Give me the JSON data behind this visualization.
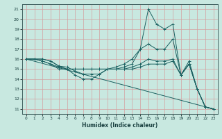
{
  "xlabel": "Humidex (Indice chaleur)",
  "bg_color": "#c8e8e0",
  "grid_color": "#d4a0a0",
  "line_color": "#1a6060",
  "xlim": [
    -0.5,
    23.5
  ],
  "ylim": [
    10.5,
    21.5
  ],
  "yticks": [
    11,
    12,
    13,
    14,
    15,
    16,
    17,
    18,
    19,
    20,
    21
  ],
  "xticks": [
    0,
    1,
    2,
    3,
    4,
    5,
    6,
    7,
    8,
    9,
    10,
    11,
    12,
    13,
    14,
    15,
    16,
    17,
    18,
    19,
    20,
    21,
    22,
    23
  ],
  "lines": [
    {
      "x": [
        0,
        1,
        2,
        3,
        4,
        5,
        6,
        7,
        8,
        9,
        10,
        11,
        12,
        13,
        14,
        15,
        16,
        17,
        18,
        19,
        20,
        21,
        22,
        23
      ],
      "y": [
        16,
        16,
        16,
        15.8,
        15.3,
        15.0,
        14.4,
        14.0,
        14.0,
        14.5,
        15.0,
        15.0,
        15.2,
        15.5,
        17.0,
        21.0,
        19.5,
        19.0,
        19.5,
        14.4,
        15.8,
        13.0,
        11.2,
        11.0
      ],
      "marker": true
    },
    {
      "x": [
        0,
        1,
        2,
        3,
        4,
        5,
        6,
        7,
        8,
        9,
        10,
        11,
        12,
        13,
        14,
        15,
        16,
        17,
        18,
        19,
        20,
        21,
        22,
        23
      ],
      "y": [
        16,
        16,
        16,
        15.8,
        15.3,
        15.2,
        14.8,
        14.5,
        14.5,
        14.5,
        15.0,
        15.2,
        15.5,
        16.0,
        17.0,
        17.5,
        17.0,
        17.0,
        18.0,
        14.4,
        15.5,
        13.0,
        11.2,
        11.0
      ],
      "marker": true
    },
    {
      "x": [
        0,
        1,
        2,
        3,
        4,
        5,
        6,
        7,
        8,
        9,
        10,
        11,
        12,
        13,
        14,
        15,
        16,
        17,
        18,
        19,
        20,
        21,
        22,
        23
      ],
      "y": [
        16,
        16,
        15.8,
        15.5,
        15.2,
        15.0,
        15.0,
        15.0,
        15.0,
        15.0,
        15.0,
        15.0,
        15.0,
        15.2,
        15.5,
        16.0,
        15.8,
        15.8,
        16.0,
        14.4,
        15.5,
        13.0,
        11.2,
        11.0
      ],
      "marker": true
    },
    {
      "x": [
        0,
        1,
        2,
        3,
        4,
        5,
        6,
        7,
        8,
        9,
        10,
        11,
        12,
        13,
        14,
        15,
        16,
        17,
        18,
        19,
        20,
        21,
        22,
        23
      ],
      "y": [
        16,
        16,
        15.8,
        15.5,
        15.0,
        15.0,
        15.0,
        15.0,
        15.0,
        15.0,
        15.0,
        15.0,
        15.0,
        15.0,
        15.2,
        15.5,
        15.5,
        15.5,
        15.8,
        14.4,
        15.5,
        13.0,
        11.2,
        11.0
      ],
      "marker": true
    },
    {
      "x": [
        0,
        23
      ],
      "y": [
        16,
        11
      ],
      "marker": false
    }
  ]
}
